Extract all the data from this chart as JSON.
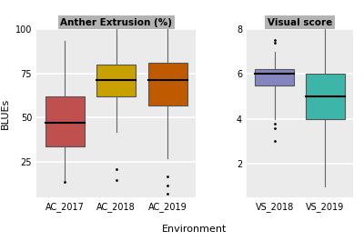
{
  "panel1_title": "Anther Extrusion (%)",
  "panel2_title": "Visual score",
  "ylabel": "BLUEs",
  "xlabel": "Environment",
  "panel1_categories": [
    "AC_2017",
    "AC_2018",
    "AC_2019"
  ],
  "panel2_categories": [
    "VS_2018",
    "VS_2019"
  ],
  "panel1_colors": [
    "#c0504d",
    "#c8a000",
    "#c05a00"
  ],
  "panel2_colors": [
    "#8585c0",
    "#3db5a8"
  ],
  "panel1_ylim": [
    5,
    100
  ],
  "panel2_ylim": [
    0.5,
    8
  ],
  "panel1_yticks": [
    25,
    50,
    75,
    100
  ],
  "panel2_yticks": [
    2,
    4,
    6,
    8
  ],
  "background_color": "#ffffff",
  "panel_bg": "#ebebeb",
  "header_bg": "#b3b3b3",
  "grid_color": "#ffffff",
  "AC_2017": {
    "whislo": 15,
    "q1": 34,
    "med": 47,
    "q3": 62,
    "whishi": 93,
    "fliers_lo": [
      14
    ],
    "fliers_hi": []
  },
  "AC_2018": {
    "whislo": 42,
    "q1": 62,
    "med": 71,
    "q3": 80,
    "whishi": 100,
    "fliers_lo": [
      21,
      15
    ],
    "fliers_hi": []
  },
  "AC_2019": {
    "whislo": 27,
    "q1": 57,
    "med": 71,
    "q3": 81,
    "whishi": 100,
    "fliers_lo": [
      17,
      12,
      7
    ],
    "fliers_hi": []
  },
  "VS_2018": {
    "whislo": 4.0,
    "q1": 5.5,
    "med": 6.0,
    "q3": 6.2,
    "whishi": 7.0,
    "fliers_lo": [
      3.0,
      3.6,
      3.8
    ],
    "fliers_hi": [
      7.4,
      7.5
    ]
  },
  "VS_2019": {
    "whislo": 1.0,
    "q1": 4.0,
    "med": 5.0,
    "q3": 6.0,
    "whishi": 8.0,
    "fliers_lo": [],
    "fliers_hi": []
  }
}
